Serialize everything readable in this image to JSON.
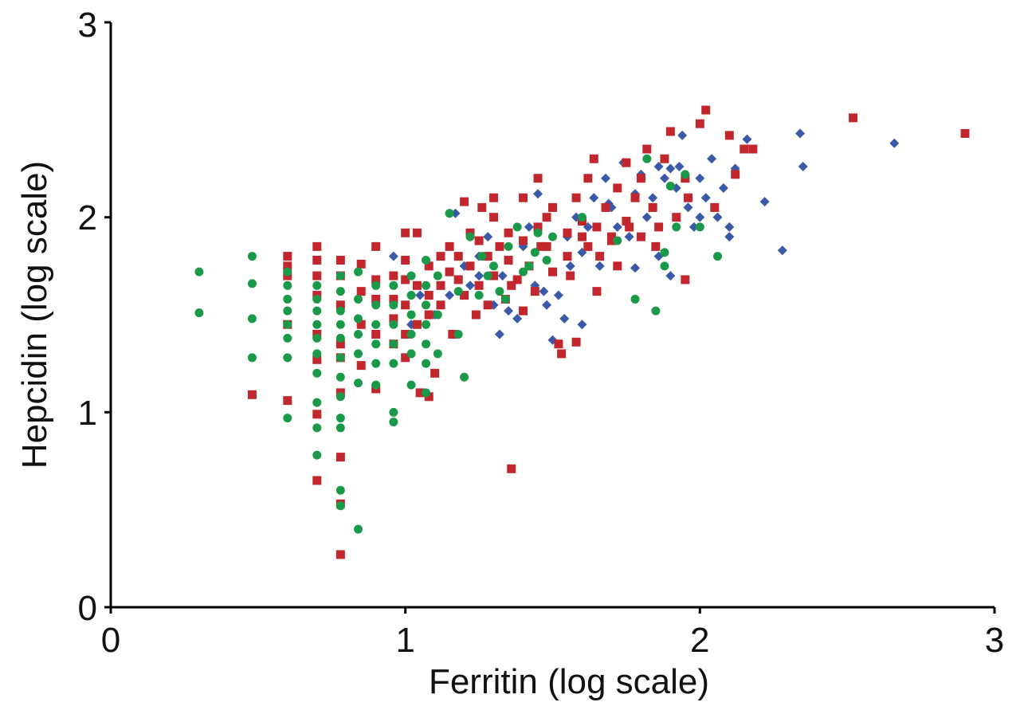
{
  "chart_data": {
    "type": "scatter",
    "xlabel": "Ferritin (log scale)",
    "ylabel": "Hepcidin (log scale)",
    "xlim": [
      0,
      3
    ],
    "ylim": [
      0,
      3
    ],
    "x_ticks": [
      "0",
      "1",
      "2",
      "3"
    ],
    "y_ticks": [
      "0",
      "1",
      "2",
      "3"
    ],
    "grid": false,
    "legend": "none",
    "series": [
      {
        "marker": "diamond",
        "color": "#3a5aa8",
        "points": [
          [
            0.96,
            1.8
          ],
          [
            1.02,
            1.45
          ],
          [
            1.05,
            1.6
          ],
          [
            1.1,
            1.5
          ],
          [
            1.15,
            1.6
          ],
          [
            1.17,
            2.02
          ],
          [
            1.2,
            1.75
          ],
          [
            1.22,
            1.65
          ],
          [
            1.25,
            1.8
          ],
          [
            1.28,
            1.9
          ],
          [
            1.3,
            1.55
          ],
          [
            1.33,
            1.7
          ],
          [
            1.35,
            1.52
          ],
          [
            1.38,
            1.48
          ],
          [
            1.4,
            1.85
          ],
          [
            1.42,
            1.95
          ],
          [
            1.44,
            1.65
          ],
          [
            1.45,
            2.12
          ],
          [
            1.48,
            1.55
          ],
          [
            1.5,
            1.37
          ],
          [
            1.52,
            1.6
          ],
          [
            1.54,
            1.48
          ],
          [
            1.55,
            1.9
          ],
          [
            1.56,
            1.75
          ],
          [
            1.58,
            2.0
          ],
          [
            1.6,
            1.82
          ],
          [
            1.62,
            1.95
          ],
          [
            1.64,
            2.1
          ],
          [
            1.66,
            1.75
          ],
          [
            1.68,
            2.2
          ],
          [
            1.7,
            2.05
          ],
          [
            1.72,
            1.95
          ],
          [
            1.74,
            2.28
          ],
          [
            1.76,
            1.9
          ],
          [
            1.78,
            2.12
          ],
          [
            1.8,
            2.22
          ],
          [
            1.82,
            2.0
          ],
          [
            1.84,
            2.1
          ],
          [
            1.86,
            1.8
          ],
          [
            1.88,
            2.2
          ],
          [
            1.9,
            2.25
          ],
          [
            1.92,
            2.15
          ],
          [
            1.94,
            2.42
          ],
          [
            1.96,
            2.05
          ],
          [
            1.98,
            1.95
          ],
          [
            2.0,
            2.2
          ],
          [
            2.02,
            2.1
          ],
          [
            2.04,
            2.3
          ],
          [
            2.06,
            2.0
          ],
          [
            2.08,
            2.15
          ],
          [
            2.1,
            1.95
          ],
          [
            2.12,
            2.25
          ],
          [
            2.16,
            2.4
          ],
          [
            2.22,
            2.08
          ],
          [
            2.28,
            1.83
          ],
          [
            2.34,
            2.43
          ],
          [
            2.35,
            2.26
          ],
          [
            2.66,
            2.38
          ],
          [
            1.15,
            2.02
          ],
          [
            1.9,
            1.7
          ],
          [
            1.32,
            1.4
          ],
          [
            1.47,
            1.62
          ],
          [
            1.69,
            2.07
          ],
          [
            1.86,
            2.26
          ],
          [
            2.0,
            2.0
          ],
          [
            2.1,
            1.9
          ],
          [
            1.6,
            1.45
          ],
          [
            1.78,
            1.74
          ],
          [
            1.93,
            2.26
          ],
          [
            1.25,
            1.7
          ]
        ]
      },
      {
        "marker": "square",
        "color": "#c1272d",
        "points": [
          [
            0.48,
            1.09
          ],
          [
            0.6,
            1.8
          ],
          [
            0.6,
            1.75
          ],
          [
            0.6,
            1.7
          ],
          [
            0.6,
            1.45
          ],
          [
            0.6,
            1.06
          ],
          [
            0.7,
            1.85
          ],
          [
            0.7,
            1.78
          ],
          [
            0.7,
            1.7
          ],
          [
            0.7,
            1.6
          ],
          [
            0.7,
            1.4
          ],
          [
            0.7,
            1.27
          ],
          [
            0.7,
            0.99
          ],
          [
            0.7,
            0.65
          ],
          [
            0.78,
            1.78
          ],
          [
            0.78,
            1.7
          ],
          [
            0.78,
            1.55
          ],
          [
            0.78,
            1.35
          ],
          [
            0.78,
            1.28
          ],
          [
            0.78,
            1.1
          ],
          [
            0.78,
            0.77
          ],
          [
            0.78,
            0.53
          ],
          [
            0.78,
            0.27
          ],
          [
            0.85,
            1.76
          ],
          [
            0.85,
            1.62
          ],
          [
            0.85,
            1.45
          ],
          [
            0.85,
            1.24
          ],
          [
            0.9,
            1.68
          ],
          [
            0.9,
            1.58
          ],
          [
            0.9,
            1.4
          ],
          [
            0.9,
            1.12
          ],
          [
            0.9,
            1.85
          ],
          [
            0.96,
            1.7
          ],
          [
            0.96,
            1.58
          ],
          [
            0.96,
            1.48
          ],
          [
            0.96,
            1.35
          ],
          [
            1.0,
            1.92
          ],
          [
            1.0,
            1.78
          ],
          [
            1.0,
            1.68
          ],
          [
            1.0,
            1.55
          ],
          [
            1.0,
            1.4
          ],
          [
            1.0,
            1.28
          ],
          [
            1.04,
            1.92
          ],
          [
            1.04,
            1.65
          ],
          [
            1.04,
            1.45
          ],
          [
            1.08,
            1.75
          ],
          [
            1.08,
            1.6
          ],
          [
            1.08,
            1.5
          ],
          [
            1.08,
            1.08
          ],
          [
            1.12,
            1.8
          ],
          [
            1.12,
            1.65
          ],
          [
            1.12,
            1.55
          ],
          [
            1.15,
            1.85
          ],
          [
            1.15,
            1.72
          ],
          [
            1.18,
            1.68
          ],
          [
            1.18,
            1.8
          ],
          [
            1.2,
            1.6
          ],
          [
            1.22,
            1.92
          ],
          [
            1.22,
            1.75
          ],
          [
            1.25,
            1.88
          ],
          [
            1.25,
            1.65
          ],
          [
            1.28,
            1.55
          ],
          [
            1.28,
            1.8
          ],
          [
            1.3,
            2.0
          ],
          [
            1.3,
            1.7
          ],
          [
            1.32,
            1.85
          ],
          [
            1.35,
            1.92
          ],
          [
            1.35,
            1.78
          ],
          [
            1.36,
            0.71
          ],
          [
            1.38,
            1.68
          ],
          [
            1.4,
            2.1
          ],
          [
            1.4,
            1.88
          ],
          [
            1.42,
            1.75
          ],
          [
            1.45,
            1.95
          ],
          [
            1.45,
            2.2
          ],
          [
            1.48,
            1.85
          ],
          [
            1.5,
            2.05
          ],
          [
            1.5,
            1.72
          ],
          [
            1.52,
            1.35
          ],
          [
            1.53,
            1.3
          ],
          [
            1.55,
            1.92
          ],
          [
            1.55,
            1.8
          ],
          [
            1.58,
            1.36
          ],
          [
            1.58,
            2.1
          ],
          [
            1.6,
            1.98
          ],
          [
            1.62,
            2.2
          ],
          [
            1.62,
            1.85
          ],
          [
            1.65,
            1.95
          ],
          [
            1.65,
            1.62
          ],
          [
            1.68,
            2.05
          ],
          [
            1.7,
            1.88
          ],
          [
            1.72,
            2.15
          ],
          [
            1.72,
            1.75
          ],
          [
            1.75,
            1.98
          ],
          [
            1.75,
            2.28
          ],
          [
            1.78,
            2.1
          ],
          [
            1.8,
            1.9
          ],
          [
            1.82,
            2.35
          ],
          [
            1.84,
            2.05
          ],
          [
            1.85,
            1.85
          ],
          [
            1.88,
            2.3
          ],
          [
            1.9,
            2.44
          ],
          [
            1.92,
            2.0
          ],
          [
            1.95,
            2.2
          ],
          [
            1.95,
            1.68
          ],
          [
            2.0,
            2.48
          ],
          [
            2.02,
            2.55
          ],
          [
            2.05,
            2.05
          ],
          [
            2.1,
            2.42
          ],
          [
            2.12,
            2.22
          ],
          [
            2.15,
            2.35
          ],
          [
            2.18,
            2.35
          ],
          [
            2.52,
            2.51
          ],
          [
            2.9,
            2.43
          ],
          [
            1.26,
            2.05
          ],
          [
            1.34,
            1.58
          ],
          [
            1.44,
            1.62
          ],
          [
            1.46,
            1.85
          ],
          [
            1.56,
            1.7
          ],
          [
            1.66,
            1.8
          ],
          [
            1.76,
            1.95
          ],
          [
            1.86,
            1.95
          ],
          [
            1.96,
            2.1
          ],
          [
            1.1,
            1.2
          ],
          [
            1.05,
            1.1
          ],
          [
            1.2,
            2.08
          ],
          [
            1.3,
            2.1
          ],
          [
            1.24,
            1.5
          ],
          [
            1.36,
            1.65
          ],
          [
            1.48,
            2.0
          ],
          [
            1.64,
            2.3
          ],
          [
            1.7,
            1.9
          ],
          [
            1.8,
            2.2
          ],
          [
            1.16,
            1.4
          ],
          [
            1.4,
            1.52
          ],
          [
            1.6,
            1.9
          ]
        ]
      },
      {
        "marker": "circle",
        "color": "#1a9a49",
        "points": [
          [
            0.3,
            1.72
          ],
          [
            0.3,
            1.51
          ],
          [
            0.48,
            1.8
          ],
          [
            0.48,
            1.66
          ],
          [
            0.48,
            1.48
          ],
          [
            0.48,
            1.28
          ],
          [
            0.6,
            1.72
          ],
          [
            0.6,
            1.65
          ],
          [
            0.6,
            1.58
          ],
          [
            0.6,
            1.52
          ],
          [
            0.6,
            1.45
          ],
          [
            0.6,
            1.38
          ],
          [
            0.6,
            1.28
          ],
          [
            0.6,
            0.97
          ],
          [
            0.7,
            1.65
          ],
          [
            0.7,
            1.58
          ],
          [
            0.7,
            1.52
          ],
          [
            0.7,
            1.45
          ],
          [
            0.7,
            1.38
          ],
          [
            0.7,
            1.3
          ],
          [
            0.7,
            1.2
          ],
          [
            0.7,
            1.05
          ],
          [
            0.7,
            0.92
          ],
          [
            0.7,
            0.78
          ],
          [
            0.78,
            1.7
          ],
          [
            0.78,
            1.62
          ],
          [
            0.78,
            1.52
          ],
          [
            0.78,
            1.45
          ],
          [
            0.78,
            1.38
          ],
          [
            0.78,
            1.28
          ],
          [
            0.78,
            1.18
          ],
          [
            0.78,
            1.08
          ],
          [
            0.78,
            0.97
          ],
          [
            0.78,
            0.92
          ],
          [
            0.78,
            0.6
          ],
          [
            0.78,
            0.52
          ],
          [
            0.84,
            1.72
          ],
          [
            0.84,
            1.58
          ],
          [
            0.84,
            1.48
          ],
          [
            0.84,
            1.4
          ],
          [
            0.84,
            1.3
          ],
          [
            0.84,
            1.15
          ],
          [
            0.84,
            0.4
          ],
          [
            0.9,
            1.65
          ],
          [
            0.9,
            1.55
          ],
          [
            0.9,
            1.45
          ],
          [
            0.9,
            1.35
          ],
          [
            0.9,
            1.25
          ],
          [
            0.9,
            1.14
          ],
          [
            0.96,
            1.65
          ],
          [
            0.96,
            1.55
          ],
          [
            0.96,
            1.45
          ],
          [
            0.96,
            1.35
          ],
          [
            0.96,
            1.25
          ],
          [
            0.96,
            1.0
          ],
          [
            0.96,
            0.95
          ],
          [
            1.02,
            1.7
          ],
          [
            1.02,
            1.6
          ],
          [
            1.02,
            1.5
          ],
          [
            1.02,
            1.4
          ],
          [
            1.02,
            1.3
          ],
          [
            1.02,
            1.14
          ],
          [
            1.07,
            1.78
          ],
          [
            1.07,
            1.65
          ],
          [
            1.07,
            1.55
          ],
          [
            1.07,
            1.45
          ],
          [
            1.07,
            1.35
          ],
          [
            1.07,
            1.25
          ],
          [
            1.07,
            1.1
          ],
          [
            1.11,
            1.7
          ],
          [
            1.11,
            1.5
          ],
          [
            1.11,
            1.3
          ],
          [
            1.15,
            2.02
          ],
          [
            1.18,
            1.4
          ],
          [
            1.2,
            1.18
          ],
          [
            1.22,
            1.9
          ],
          [
            1.25,
            1.6
          ],
          [
            1.3,
            1.75
          ],
          [
            1.32,
            1.62
          ],
          [
            1.35,
            1.85
          ],
          [
            1.38,
            1.95
          ],
          [
            1.4,
            1.72
          ],
          [
            1.42,
            1.75
          ],
          [
            1.45,
            1.92
          ],
          [
            1.48,
            1.78
          ],
          [
            1.6,
            2.0
          ],
          [
            1.72,
            1.88
          ],
          [
            1.78,
            1.58
          ],
          [
            1.82,
            2.3
          ],
          [
            1.85,
            1.52
          ],
          [
            1.88,
            1.75
          ],
          [
            1.9,
            2.16
          ],
          [
            1.92,
            1.95
          ],
          [
            1.95,
            2.22
          ],
          [
            2.0,
            1.95
          ],
          [
            2.06,
            1.8
          ],
          [
            1.18,
            1.62
          ],
          [
            1.28,
            1.7
          ],
          [
            1.34,
            1.58
          ],
          [
            1.44,
            1.82
          ],
          [
            1.5,
            1.9
          ],
          [
            1.26,
            1.8
          ],
          [
            1.88,
            1.82
          ]
        ]
      }
    ]
  }
}
